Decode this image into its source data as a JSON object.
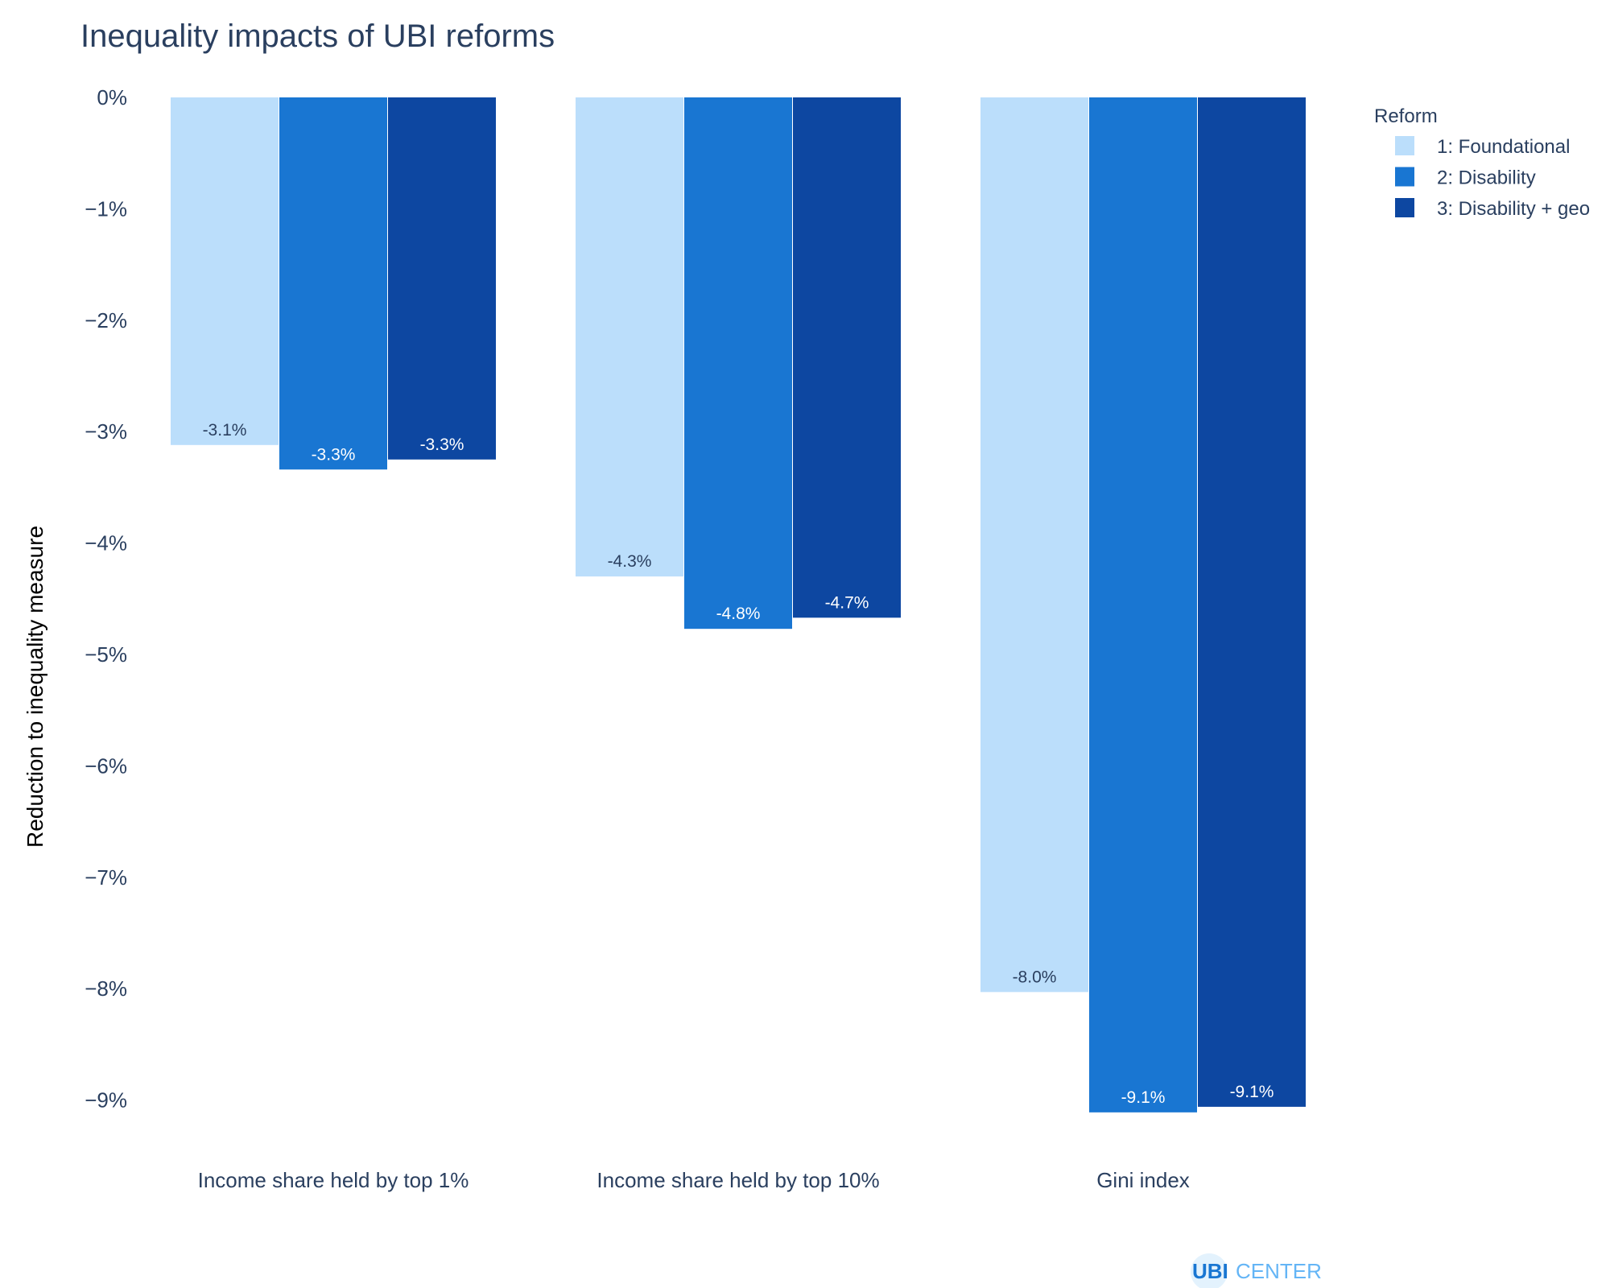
{
  "chart_data": {
    "type": "bar",
    "title": "Inequality impacts of UBI reforms",
    "xlabel": "",
    "ylabel": "Reduction to inequality measure",
    "categories": [
      "Income share held by top 1%",
      "Income share held by top 10%",
      "Gini index"
    ],
    "series": [
      {
        "name": "1: Foundational",
        "values": [
          -3.12,
          -4.3,
          -8.03
        ],
        "labels": [
          "-3.1%",
          "-4.3%",
          "-8.0%"
        ],
        "color": "#bbdefb",
        "label_color": "#2a3f5f"
      },
      {
        "name": "2: Disability",
        "values": [
          -3.34,
          -4.77,
          -9.11
        ],
        "labels": [
          "-3.3%",
          "-4.8%",
          "-9.1%"
        ],
        "color": "#1976d2",
        "label_color": "#ffffff"
      },
      {
        "name": "3: Disability + geo",
        "values": [
          -3.25,
          -4.67,
          -9.06
        ],
        "labels": [
          "-3.3%",
          "-4.7%",
          "-9.1%"
        ],
        "color": "#0d47a1",
        "label_color": "#ffffff"
      }
    ],
    "ylim": [
      -9.25,
      0
    ],
    "yticks": [
      0,
      -1,
      -2,
      -3,
      -4,
      -5,
      -6,
      -7,
      -8,
      -9
    ],
    "ytick_labels": [
      "0%",
      "−1%",
      "−2%",
      "−3%",
      "−4%",
      "−5%",
      "−6%",
      "−7%",
      "−8%",
      "−9%"
    ],
    "grid": false,
    "legend": {
      "title": "Reform",
      "position": "top-right"
    }
  },
  "branding": {
    "logo_part1": "UBI",
    "logo_part2": "CENTER"
  }
}
